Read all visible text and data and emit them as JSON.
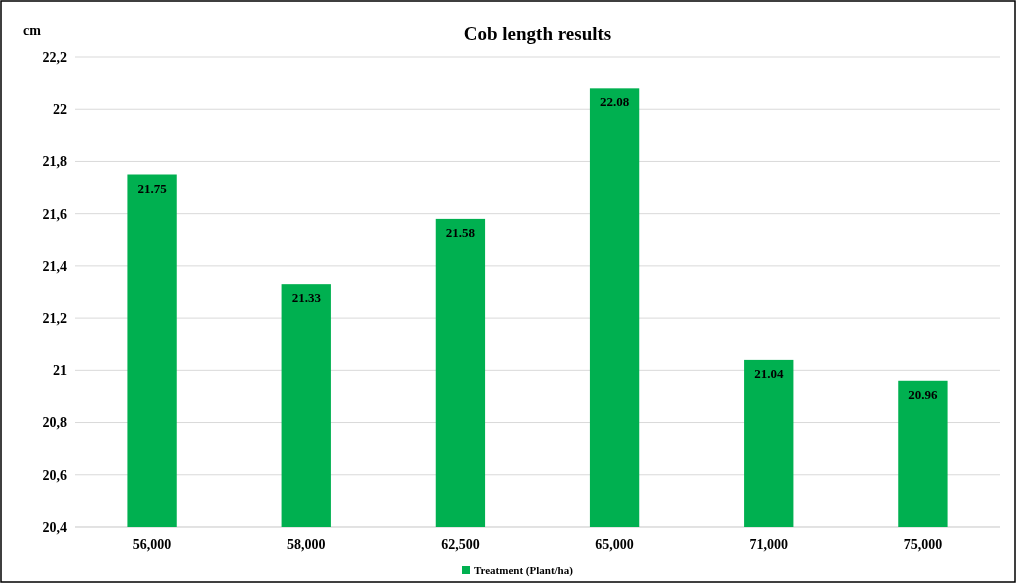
{
  "chart_data": {
    "type": "bar",
    "title": "Cob length results",
    "ylabel": "cm",
    "categories": [
      "56,000",
      "58,000",
      "62,500",
      "65,000",
      "71,000",
      "75,000"
    ],
    "series": [
      {
        "name": "Treatment (Plant/ha)",
        "color": "#00b050",
        "values": [
          21.75,
          21.33,
          21.58,
          22.08,
          21.04,
          20.96
        ]
      }
    ],
    "ylim": [
      20.4,
      22.2
    ],
    "yticks": [
      {
        "value": 20.4,
        "label": "20,4"
      },
      {
        "value": 20.6,
        "label": "20,6"
      },
      {
        "value": 20.8,
        "label": "20,8"
      },
      21,
      {
        "value": 21.2,
        "label": "21,2"
      },
      {
        "value": 21.4,
        "label": "21,4"
      },
      {
        "value": 21.6,
        "label": "21,6"
      },
      {
        "value": 21.8,
        "label": "21,8"
      },
      22,
      {
        "value": 22.2,
        "label": "22,2"
      }
    ],
    "grid": "y",
    "data_labels": true,
    "legend": "bottom"
  }
}
